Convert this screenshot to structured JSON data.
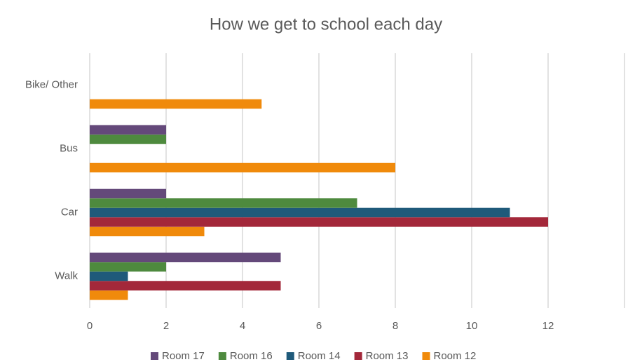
{
  "chart_data": {
    "type": "hbar",
    "title": "How we get to school each day",
    "categories": [
      "Walk",
      "Car",
      "Bus",
      "Bike/ Other"
    ],
    "series": [
      {
        "name": "Room 12",
        "color": "#f08a0b",
        "values": [
          1,
          3,
          8,
          4.5
        ]
      },
      {
        "name": "Room 13",
        "color": "#a3283a",
        "values": [
          5,
          12,
          null,
          null
        ]
      },
      {
        "name": "Room 14",
        "color": "#1f5a7a",
        "values": [
          1,
          11,
          null,
          null
        ]
      },
      {
        "name": "Room 16",
        "color": "#4e8a3e",
        "values": [
          2,
          7,
          2,
          null
        ]
      },
      {
        "name": "Room 17",
        "color": "#64497a",
        "values": [
          5,
          2,
          2,
          null
        ]
      }
    ],
    "xlim": [
      0,
      14
    ],
    "xticks": [
      0,
      2,
      4,
      6,
      8,
      10,
      12
    ],
    "grid": true,
    "legend": "bottom"
  }
}
